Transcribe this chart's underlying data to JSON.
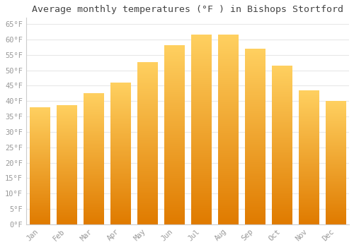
{
  "title": "Average monthly temperatures (°F ) in Bishops Stortford",
  "months": [
    "Jan",
    "Feb",
    "Mar",
    "Apr",
    "May",
    "Jun",
    "Jul",
    "Aug",
    "Sep",
    "Oct",
    "Nov",
    "Dec"
  ],
  "values": [
    38.0,
    38.5,
    42.5,
    46.0,
    52.5,
    58.0,
    61.5,
    61.5,
    57.0,
    51.5,
    43.5,
    40.0
  ],
  "bar_color_bottom": "#E07B00",
  "bar_color_top": "#FFD060",
  "ylim": [
    0,
    67
  ],
  "yticks": [
    0,
    5,
    10,
    15,
    20,
    25,
    30,
    35,
    40,
    45,
    50,
    55,
    60,
    65
  ],
  "ytick_labels": [
    "0°F",
    "5°F",
    "10°F",
    "15°F",
    "20°F",
    "25°F",
    "30°F",
    "35°F",
    "40°F",
    "45°F",
    "50°F",
    "55°F",
    "60°F",
    "65°F"
  ],
  "background_color": "#ffffff",
  "grid_color": "#e8e8e8",
  "title_fontsize": 9.5,
  "tick_fontsize": 7.5,
  "tick_color": "#999999",
  "font_family": "monospace",
  "bar_width": 0.75,
  "figsize": [
    5.0,
    3.5
  ],
  "dpi": 100
}
